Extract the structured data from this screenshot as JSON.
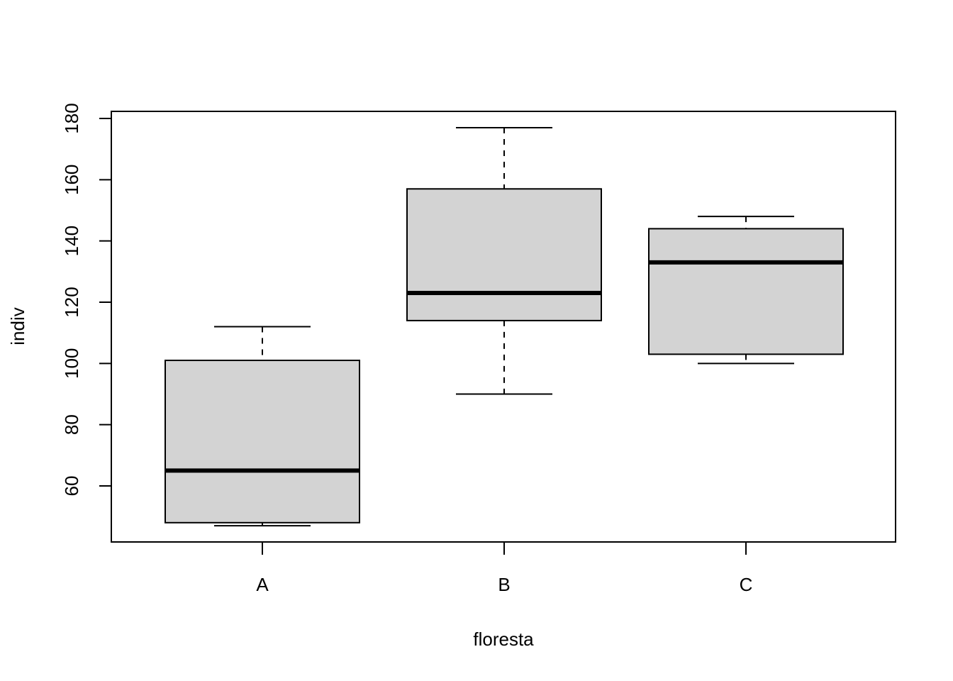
{
  "chart_data": {
    "type": "boxplot",
    "title": "",
    "xlabel": "floresta",
    "ylabel": "indiv",
    "categories": [
      "A",
      "B",
      "C"
    ],
    "boxes": [
      {
        "category": "A",
        "whisker_low": 47,
        "q1": 48,
        "median": 65,
        "q3": 101,
        "whisker_high": 112
      },
      {
        "category": "B",
        "whisker_low": 90,
        "q1": 114,
        "median": 123,
        "q3": 157,
        "whisker_high": 177
      },
      {
        "category": "C",
        "whisker_low": 100,
        "q1": 103,
        "median": 133,
        "q3": 144,
        "whisker_high": 148
      }
    ],
    "yticks": [
      60,
      80,
      100,
      120,
      140,
      160,
      180
    ],
    "ylim": [
      42,
      182
    ],
    "grid": false,
    "colors": {
      "box_fill": "#d3d3d3",
      "stroke": "#000000",
      "background": "#ffffff"
    }
  }
}
